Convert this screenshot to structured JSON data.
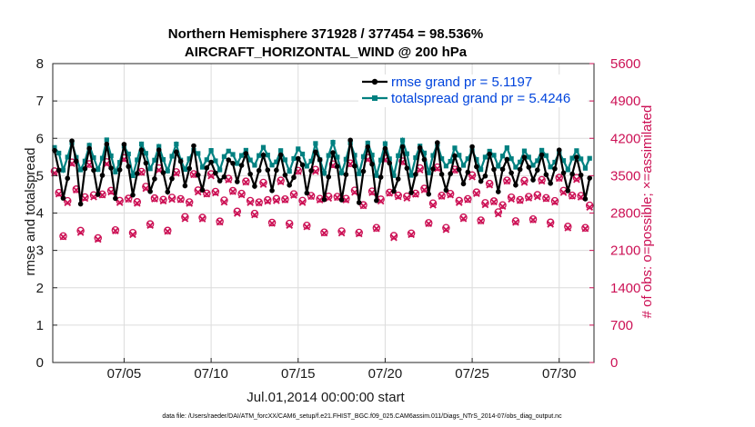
{
  "chart_data": {
    "type": "line",
    "title_line1": "Northern Hemisphere 371928 / 377454 = 98.536%",
    "title_line2": "AIRCRAFT_HORIZONTAL_WIND @ 200 hPa",
    "ylabel_left": "rmse and totalspread",
    "ylabel_right": "# of obs: o=possible; ×=assimilated",
    "xlabel": "Jul.01,2014 00:00:00 start",
    "footnote": "data file: /Users/raeder/DAI/ATM_forcXX/CAM6_setup/f.e21.FHIST_BGC.f09_025.CAM6assim.011/Diags_NTrS_2014-07/obs_diag_output.nc",
    "x_range_days": [
      0.9,
      32.0
    ],
    "ylim_left": [
      0,
      8
    ],
    "ylim_right": [
      0,
      5600
    ],
    "yticks_left": [
      "0",
      "1",
      "2",
      "3",
      "4",
      "5",
      "6",
      "7",
      "8"
    ],
    "yticks_right": [
      "0",
      "700",
      "1400",
      "2100",
      "2800",
      "3500",
      "4200",
      "4900",
      "5600"
    ],
    "xticks": [
      {
        "day": 5,
        "label": "07/05"
      },
      {
        "day": 10,
        "label": "07/10"
      },
      {
        "day": 15,
        "label": "07/15"
      },
      {
        "day": 20,
        "label": "07/20"
      },
      {
        "day": 25,
        "label": "07/25"
      },
      {
        "day": 30,
        "label": "07/30"
      }
    ],
    "colors": {
      "rmse": "#000000",
      "spread": "#008080",
      "obs": "#cc1155",
      "legend_text": "#0044dd"
    },
    "series": [
      {
        "name": "rmse grand pr = 5.1197",
        "key": "rmse",
        "base": 5.1,
        "amp": 0.8,
        "noise": 0.2
      },
      {
        "name": "totalspread grand pr = 5.4246",
        "key": "spread",
        "base": 5.45,
        "amp": 0.42,
        "noise": 0.1
      },
      {
        "name": "obs possible",
        "key": "obs_possible",
        "base": 3050,
        "amp": 700,
        "noise": 120
      },
      {
        "name": "obs assimilated",
        "key": "obs_assimilated",
        "base": 3000,
        "amp": 690,
        "noise": 120
      }
    ],
    "legend_position": "top-right"
  }
}
